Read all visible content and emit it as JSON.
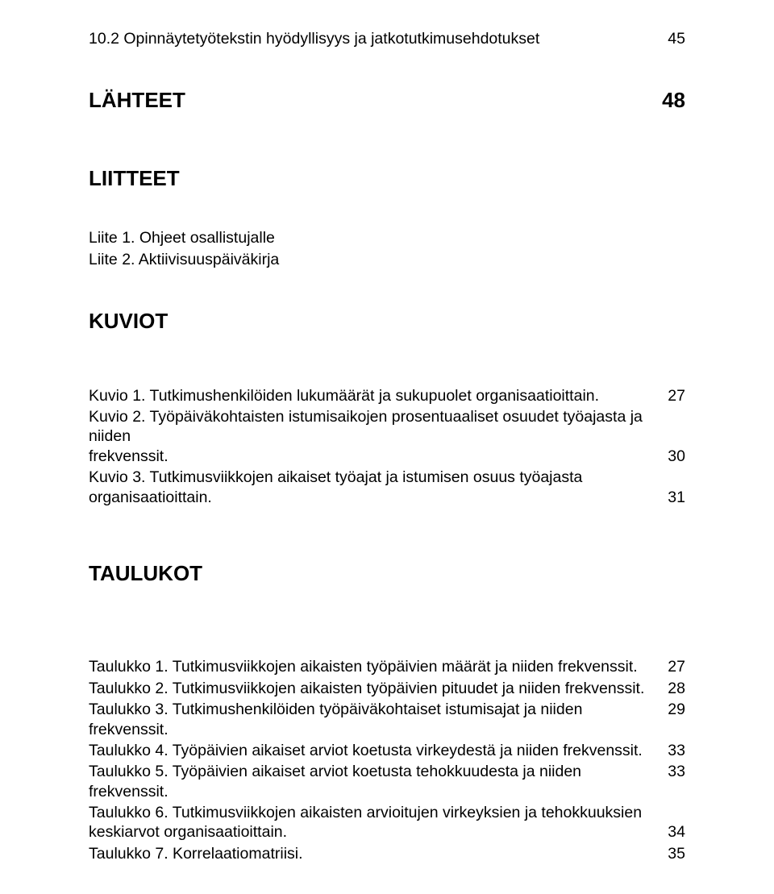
{
  "font": {
    "body_pt": 19.5,
    "heading_pt": 26,
    "family": "Arial"
  },
  "colors": {
    "text": "#000000",
    "background": "#ffffff"
  },
  "top_entry": {
    "text": "10.2 Opinnäytetyötekstin hyödyllisyys ja jatkotutkimusehdotukset",
    "page": "45"
  },
  "sections": {
    "lahteet_label": "LÄHTEET",
    "lahteet_page": "48",
    "liitteet_label": "LIITTEET",
    "kuviot_label": "KUVIOT",
    "taulukot_label": "TAULUKOT"
  },
  "liitteet": [
    {
      "label": "Liite 1. Ohjeet osallistujalle"
    },
    {
      "label": "Liite 2. Aktiivisuuspäiväkirja"
    }
  ],
  "kuviot": [
    {
      "label_line1": "Kuvio 1. Tutkimushenkilöiden lukumäärät ja sukupuolet organisaatioittain.",
      "page": "27"
    },
    {
      "label_line1": "Kuvio 2. Työpäiväkohtaisten istumisaikojen prosentuaaliset osuudet työajasta ja niiden",
      "label_line2": "frekvenssit.",
      "page": "30"
    },
    {
      "label_line1": "Kuvio 3. Tutkimusviikkojen aikaiset työajat ja istumisen osuus työajasta",
      "label_line2": "organisaatioittain.",
      "page": "31"
    }
  ],
  "taulukot": [
    {
      "label": "Taulukko 1. Tutkimusviikkojen aikaisten työpäivien määrät ja niiden frekvenssit.",
      "page": "27"
    },
    {
      "label": "Taulukko 2. Tutkimusviikkojen aikaisten työpäivien pituudet ja niiden frekvenssit.",
      "page": "28"
    },
    {
      "label": "Taulukko 3. Tutkimushenkilöiden työpäiväkohtaiset istumisajat ja niiden frekvenssit.",
      "page": "29"
    },
    {
      "label": "Taulukko 4. Työpäivien aikaiset arviot koetusta virkeydestä ja niiden frekvenssit.",
      "page": "33"
    },
    {
      "label": "Taulukko 5. Työpäivien aikaiset arviot koetusta tehokkuudesta ja niiden frekvenssit.",
      "page": "33"
    },
    {
      "label_line1": "Taulukko 6. Tutkimusviikkojen aikaisten arvioitujen virkeyksien ja tehokkuuksien",
      "label_line2": "keskiarvot organisaatioittain.",
      "page": "34"
    },
    {
      "label": "Taulukko 7. Korrelaatiomatriisi.",
      "page": "35"
    }
  ]
}
